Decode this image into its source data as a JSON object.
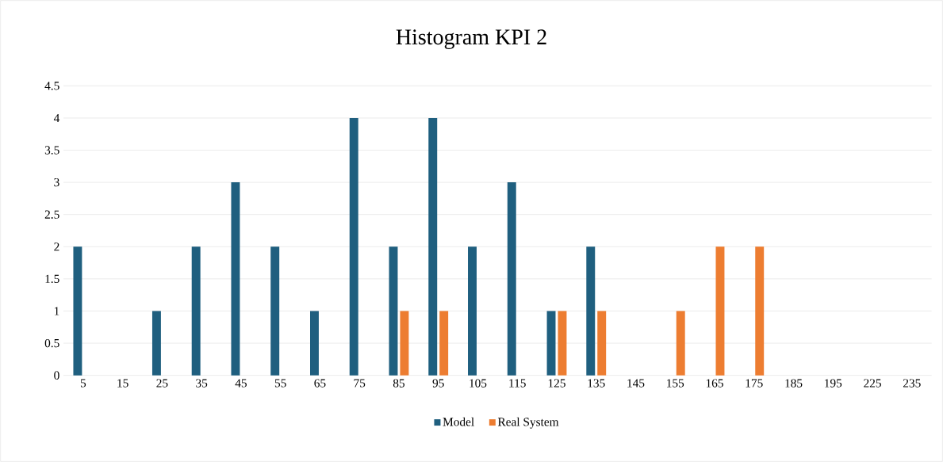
{
  "chart_data": {
    "type": "bar",
    "title": "Histogram  KPI 2",
    "categories": [
      "5",
      "15",
      "25",
      "35",
      "45",
      "55",
      "65",
      "75",
      "85",
      "95",
      "105",
      "115",
      "125",
      "135",
      "145",
      "155",
      "165",
      "175",
      "185",
      "195",
      "225",
      "235"
    ],
    "series": [
      {
        "name": "Model",
        "color": "#1f5f7f",
        "values": [
          2,
          0,
          1,
          2,
          3,
          2,
          1,
          4,
          2,
          4,
          2,
          3,
          1,
          2,
          0,
          0,
          0,
          0,
          0,
          0,
          0,
          0
        ]
      },
      {
        "name": "Real System",
        "color": "#ed7d31",
        "values": [
          0,
          0,
          0,
          0,
          0,
          0,
          0,
          0,
          1,
          1,
          0,
          0,
          1,
          1,
          0,
          1,
          2,
          2,
          0,
          0,
          0,
          0
        ]
      }
    ],
    "ylim": [
      0,
      4.5
    ],
    "yticks": [
      0,
      0.5,
      1,
      1.5,
      2,
      2.5,
      3,
      3.5,
      4,
      4.5
    ],
    "grid": "y",
    "legend": "bottom"
  }
}
